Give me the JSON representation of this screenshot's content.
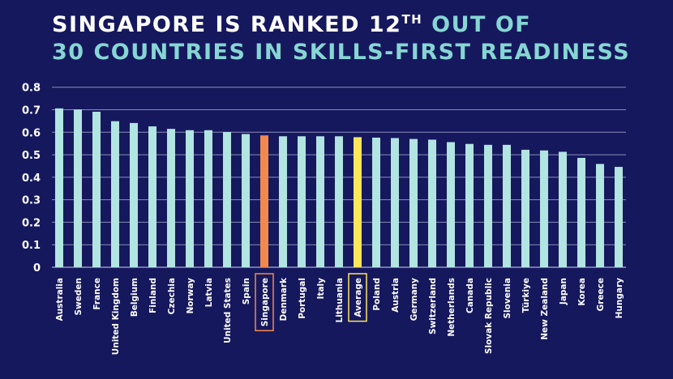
{
  "title": {
    "line1_white": "SINGAPORE IS RANKED 12",
    "line1_sup": "TH",
    "line1_accent": " OUT OF",
    "line2_accent": "30 COUNTRIES IN SKILLS-FIRST READINESS"
  },
  "colors": {
    "background": "#16185e",
    "bar": "#b2e4e2",
    "singapore": "#f2884e",
    "average": "#fde65a",
    "title_accent": "#86d6d3",
    "grid": "#8a8cb8"
  },
  "chart_data": {
    "type": "bar",
    "title": "Singapore is ranked 12th out of 30 countries in skills-first readiness",
    "xlabel": "",
    "ylabel": "",
    "ylim": [
      0,
      0.8
    ],
    "yticks": [
      "0",
      "0.1",
      "0.2",
      "0.3",
      "0.4",
      "0.5",
      "0.6",
      "0.7",
      "0.8"
    ],
    "grid": true,
    "highlight": {
      "Singapore": "singapore",
      "Average": "average"
    },
    "categories": [
      "Australia",
      "Sweden",
      "France",
      "United Kingdom",
      "Belgium",
      "Finland",
      "Czechia",
      "Norway",
      "Latvia",
      "United States",
      "Spain",
      "Singapore",
      "Denmark",
      "Portugal",
      "Italy",
      "Lithuania",
      "Average",
      "Poland",
      "Austria",
      "Germany",
      "Switzerland",
      "Netherlands",
      "Canada",
      "Slovak Republic",
      "Slovenia",
      "Türkiye",
      "New Zealand",
      "Japan",
      "Korea",
      "Greece",
      "Hungary"
    ],
    "values": [
      0.706,
      0.701,
      0.691,
      0.649,
      0.641,
      0.626,
      0.615,
      0.609,
      0.609,
      0.601,
      0.592,
      0.586,
      0.582,
      0.582,
      0.582,
      0.582,
      0.578,
      0.576,
      0.574,
      0.57,
      0.567,
      0.556,
      0.548,
      0.544,
      0.544,
      0.522,
      0.519,
      0.513,
      0.486,
      0.459,
      0.446
    ]
  }
}
